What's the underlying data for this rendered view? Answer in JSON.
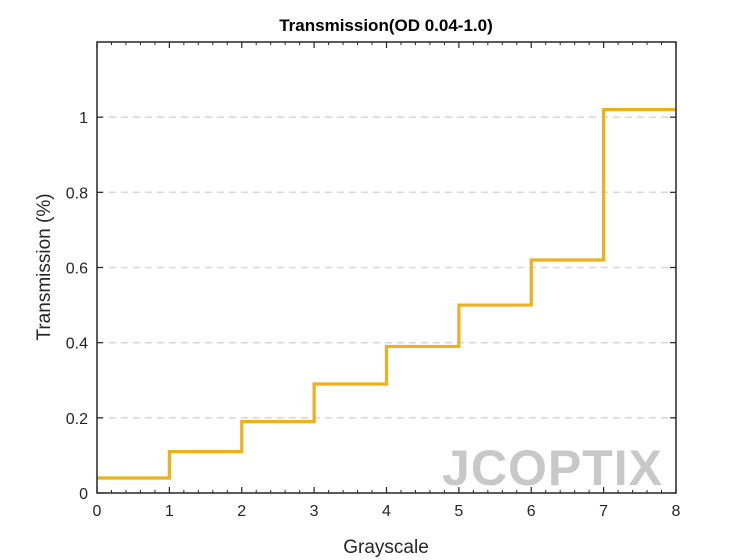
{
  "chart_data": {
    "type": "line",
    "step": true,
    "title": "Transmission(OD 0.04-1.0)",
    "xlabel": "Grayscale",
    "ylabel": "Transmission (%)",
    "xlim": [
      0,
      8
    ],
    "ylim": [
      0,
      1.2
    ],
    "xticks": [
      "0",
      "1",
      "2",
      "3",
      "4",
      "5",
      "6",
      "7",
      "8"
    ],
    "yticks": [
      "0",
      "0.2",
      "0.4",
      "0.6",
      "0.8",
      "1"
    ],
    "grid": "y-dashed",
    "series": [
      {
        "x": [
          0,
          1,
          2,
          3,
          4,
          5,
          6,
          7,
          8
        ],
        "values": [
          0.04,
          0.11,
          0.19,
          0.29,
          0.39,
          0.5,
          0.62,
          1.02,
          1.02
        ],
        "color": "#EDB120"
      }
    ],
    "watermark": "JCOPTIX"
  }
}
